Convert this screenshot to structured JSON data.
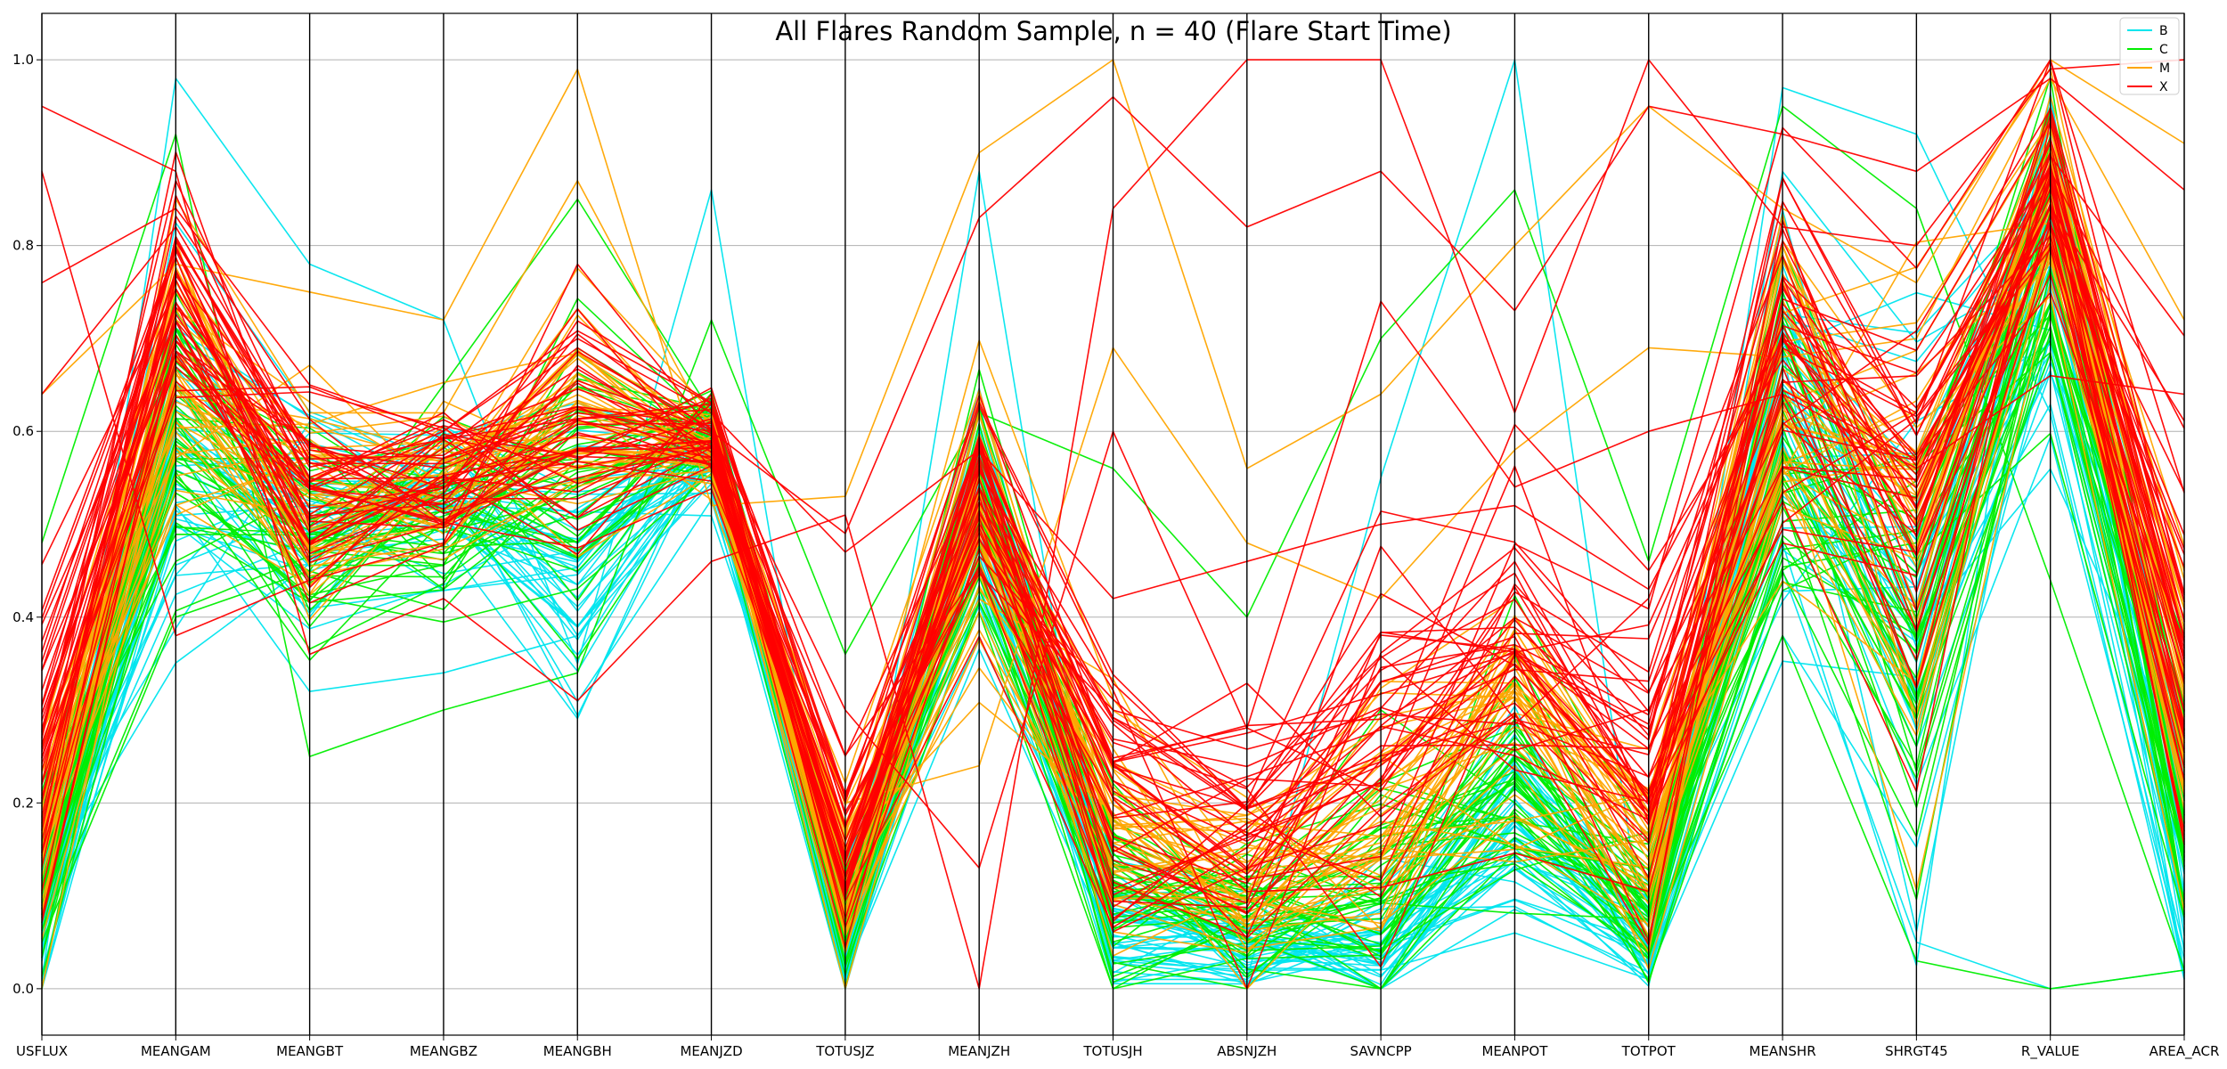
{
  "chart_data": {
    "type": "parallel_coordinates",
    "title": "All Flares Random Sample, n = 40 (Flare Start Time)",
    "axes": [
      "USFLUX",
      "MEANGAM",
      "MEANGBT",
      "MEANGBZ",
      "MEANGBH",
      "MEANJZD",
      "TOTUSJZ",
      "MEANJZH",
      "TOTUSJH",
      "ABSNJZH",
      "SAVNCPP",
      "MEANPOT",
      "TOTPOT",
      "MEANSHR",
      "SHRGT45",
      "R_VALUE",
      "AREA_ACR"
    ],
    "ylim": [
      -0.05,
      1.05
    ],
    "yticks": [
      "0.0",
      "0.2",
      "0.4",
      "0.6",
      "0.8",
      "1.0"
    ],
    "grid": true,
    "legend_position": "top-right",
    "series": [
      {
        "name": "B",
        "color": "#00e5ee",
        "count": 40
      },
      {
        "name": "C",
        "color": "#00ee00",
        "count": 40
      },
      {
        "name": "M",
        "color": "#ffa500",
        "count": 40
      },
      {
        "name": "X",
        "color": "#ff0000",
        "count": 40
      }
    ],
    "profiles": {
      "B": {
        "centers": [
          0.08,
          0.58,
          0.52,
          0.52,
          0.45,
          0.58,
          0.06,
          0.52,
          0.07,
          0.05,
          0.05,
          0.18,
          0.05,
          0.62,
          0.4,
          0.78,
          0.16
        ],
        "spreads": [
          0.05,
          0.1,
          0.08,
          0.06,
          0.08,
          0.03,
          0.05,
          0.08,
          0.05,
          0.04,
          0.05,
          0.08,
          0.04,
          0.14,
          0.18,
          0.12,
          0.1
        ],
        "extremes": [
          [
            0.01,
            0.98,
            0.78,
            0.72,
            0.35,
            0.86,
            0.01,
            0.88,
            0.01,
            0.01,
            0.55,
            1.0,
            0.02,
            0.97,
            0.92,
            0.62,
            0.01
          ],
          [
            0.0,
            0.52,
            0.32,
            0.34,
            0.38,
            0.55,
            0.02,
            0.56,
            0.03,
            0.02,
            0.02,
            0.06,
            0.01,
            0.45,
            0.05,
            0.0,
            0.02
          ]
        ]
      },
      "C": {
        "centers": [
          0.12,
          0.6,
          0.5,
          0.52,
          0.55,
          0.6,
          0.08,
          0.52,
          0.1,
          0.08,
          0.1,
          0.25,
          0.08,
          0.6,
          0.4,
          0.8,
          0.2
        ],
        "spreads": [
          0.06,
          0.1,
          0.07,
          0.06,
          0.1,
          0.03,
          0.04,
          0.07,
          0.06,
          0.05,
          0.07,
          0.08,
          0.05,
          0.14,
          0.16,
          0.1,
          0.1
        ],
        "extremes": [
          [
            0.48,
            0.92,
            0.25,
            0.3,
            0.34,
            0.72,
            0.36,
            0.62,
            0.56,
            0.4,
            0.7,
            0.86,
            0.46,
            0.95,
            0.84,
            0.44,
            0.02
          ],
          [
            0.05,
            0.4,
            0.45,
            0.65,
            0.85,
            0.62,
            0.05,
            0.58,
            0.12,
            0.1,
            0.3,
            0.2,
            0.05,
            0.38,
            0.03,
            0.0,
            0.02
          ]
        ]
      },
      "M": {
        "centers": [
          0.18,
          0.66,
          0.52,
          0.55,
          0.62,
          0.58,
          0.12,
          0.5,
          0.18,
          0.12,
          0.18,
          0.3,
          0.15,
          0.66,
          0.5,
          0.86,
          0.3
        ],
        "spreads": [
          0.08,
          0.09,
          0.07,
          0.06,
          0.08,
          0.03,
          0.06,
          0.08,
          0.08,
          0.06,
          0.08,
          0.08,
          0.08,
          0.12,
          0.15,
          0.08,
          0.14
        ],
        "extremes": [
          [
            0.64,
            0.78,
            0.75,
            0.72,
            0.99,
            0.52,
            0.53,
            0.9,
            1.0,
            0.56,
            0.64,
            0.8,
            0.95,
            0.84,
            0.76,
            1.0,
            0.91
          ],
          [
            0.08,
            0.85,
            0.62,
            0.62,
            0.87,
            0.6,
            0.2,
            0.24,
            0.69,
            0.48,
            0.42,
            0.58,
            0.69,
            0.68,
            0.7,
            0.98,
            0.72
          ]
        ]
      },
      "X": {
        "centers": [
          0.25,
          0.75,
          0.54,
          0.56,
          0.62,
          0.59,
          0.14,
          0.52,
          0.22,
          0.15,
          0.25,
          0.38,
          0.25,
          0.7,
          0.52,
          0.88,
          0.38
        ],
        "spreads": [
          0.1,
          0.08,
          0.06,
          0.05,
          0.08,
          0.03,
          0.07,
          0.08,
          0.1,
          0.1,
          0.12,
          0.1,
          0.12,
          0.12,
          0.14,
          0.07,
          0.16
        ],
        "extremes": [
          [
            0.95,
            0.88,
            0.36,
            0.42,
            0.31,
            0.46,
            0.51,
            0.0,
            0.84,
            1.0,
            1.0,
            0.62,
            1.0,
            0.82,
            0.8,
            0.99,
            1.0
          ],
          [
            0.88,
            0.38,
            0.44,
            0.48,
            0.78,
            0.6,
            0.49,
            0.83,
            0.96,
            0.82,
            0.88,
            0.73,
            0.95,
            0.92,
            0.88,
            0.98,
            0.86
          ],
          [
            0.64,
            0.82,
            0.58,
            0.56,
            0.62,
            0.6,
            0.3,
            0.13,
            0.6,
            0.28,
            0.74,
            0.54,
            0.6,
            0.64,
            0.56,
            0.66,
            0.64
          ],
          [
            0.76,
            0.84,
            0.65,
            0.6,
            0.7,
            0.62,
            0.47,
            0.58,
            0.42,
            0.46,
            0.5,
            0.52,
            0.43,
            0.7,
            0.62,
            0.9,
            0.3
          ]
        ]
      }
    }
  }
}
